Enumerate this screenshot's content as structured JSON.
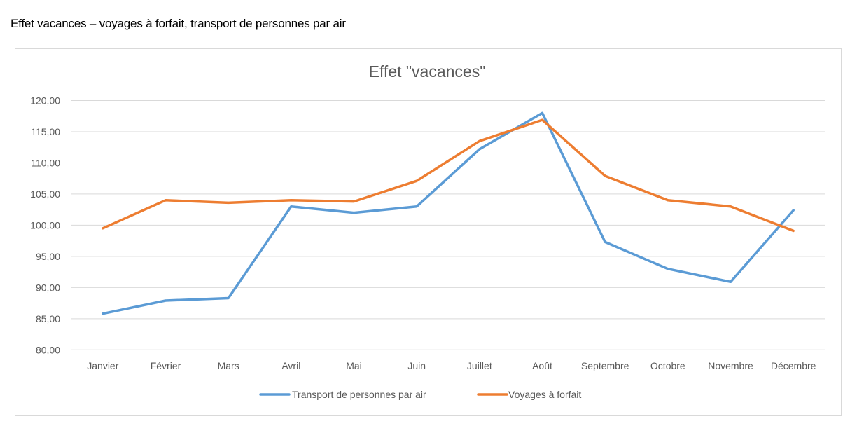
{
  "page": {
    "heading": "Effet vacances – voyages à forfait, transport de personnes par air"
  },
  "chart_data": {
    "type": "line",
    "title": "Effet \"vacances\"",
    "xlabel": "",
    "ylabel": "",
    "ylim": [
      80,
      120
    ],
    "yticks": [
      "80,00",
      "85,00",
      "90,00",
      "95,00",
      "100,00",
      "105,00",
      "110,00",
      "115,00",
      "120,00"
    ],
    "ytick_values": [
      80,
      85,
      90,
      95,
      100,
      105,
      110,
      115,
      120
    ],
    "grid": true,
    "legend_position": "bottom",
    "categories": [
      "Janvier",
      "Février",
      "Mars",
      "Avril",
      "Mai",
      "Juin",
      "Juillet",
      "Août",
      "Septembre",
      "Octobre",
      "Novembre",
      "Décembre"
    ],
    "series": [
      {
        "name": "Transport de personnes par air",
        "color": "#5b9bd5",
        "values": [
          85.8,
          87.9,
          88.3,
          103.0,
          102.0,
          103.0,
          112.2,
          118.0,
          97.3,
          93.0,
          90.9,
          102.4
        ]
      },
      {
        "name": "Voyages à forfait",
        "color": "#ed7d31",
        "values": [
          99.5,
          104.0,
          103.6,
          104.0,
          103.8,
          107.1,
          113.5,
          116.9,
          107.9,
          104.0,
          103.0,
          99.1
        ]
      }
    ]
  }
}
